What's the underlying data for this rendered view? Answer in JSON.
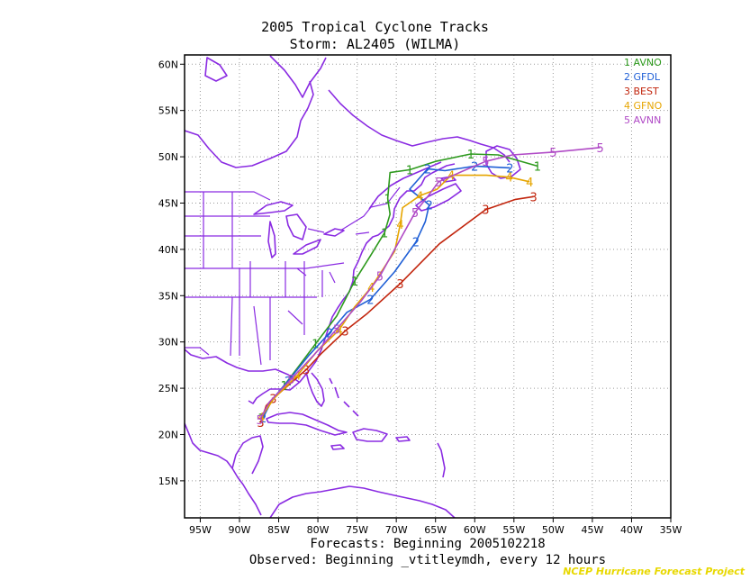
{
  "title_line1": "2005 Tropical Cyclone Tracks",
  "title_line2": "Storm: AL2405 (WILMA)",
  "footer_line1": "Forecasts: Beginning 2005102218",
  "footer_line2": "Observed: Beginning _vtitleymdh, every 12 hours",
  "credit": "NCEP Hurricane Forecast Project",
  "colors": {
    "coast": "#8a2be2",
    "grid": "#9a9a9a",
    "AVNO": "#2e9a1e",
    "GFDL": "#1f5fd6",
    "BEST": "#c2260e",
    "GFNO": "#e6a500",
    "AVNN": "#b04ac6"
  },
  "map": {
    "lon_range": [
      -97,
      -35
    ],
    "lat_range": [
      11,
      61
    ],
    "lon_ticks": [
      "95W",
      "90W",
      "85W",
      "80W",
      "75W",
      "70W",
      "65W",
      "60W",
      "55W",
      "50W",
      "45W",
      "40W",
      "35W"
    ],
    "lat_ticks": [
      "15N",
      "20N",
      "25N",
      "30N",
      "35N",
      "40N",
      "45N",
      "50N",
      "55N",
      "60N"
    ]
  },
  "legend": [
    {
      "num": "1",
      "name": "AVNO"
    },
    {
      "num": "2",
      "name": "GFDL"
    },
    {
      "num": "3",
      "name": "BEST"
    },
    {
      "num": "4",
      "name": "GFNO"
    },
    {
      "num": "5",
      "name": "AVNN"
    }
  ],
  "tracks": [
    {
      "num": "1",
      "name": "AVNO",
      "points": [
        [
          -87.2,
          21.8
        ],
        [
          -86.0,
          23.5
        ],
        [
          -84.3,
          25.3
        ],
        [
          -82.5,
          27.3
        ],
        [
          -80.3,
          29.8
        ],
        [
          -77.6,
          32.8
        ],
        [
          -75.3,
          36.6
        ],
        [
          -73.3,
          39.3
        ],
        [
          -71.5,
          41.8
        ],
        [
          -70.8,
          43.8
        ],
        [
          -71.1,
          45.5
        ],
        [
          -70.8,
          48.3
        ],
        [
          -68.3,
          48.6
        ],
        [
          -65.0,
          49.5
        ],
        [
          -60.5,
          50.3
        ],
        [
          -57.0,
          50.2
        ],
        [
          -52.0,
          49.0
        ]
      ]
    },
    {
      "num": "2",
      "name": "GFDL",
      "points": [
        [
          -87.0,
          21.8
        ],
        [
          -85.8,
          23.8
        ],
        [
          -83.8,
          25.8
        ],
        [
          -81.2,
          28.5
        ],
        [
          -78.5,
          31.0
        ],
        [
          -76.3,
          33.2
        ],
        [
          -73.3,
          34.6
        ],
        [
          -70.2,
          37.6
        ],
        [
          -67.5,
          40.8
        ],
        [
          -66.3,
          43.0
        ],
        [
          -65.8,
          44.8
        ],
        [
          -68.3,
          46.5
        ],
        [
          -66.0,
          48.7
        ],
        [
          -63.8,
          48.5
        ],
        [
          -60.0,
          49.0
        ],
        [
          -55.5,
          48.8
        ]
      ]
    },
    {
      "num": "3",
      "name": "BEST",
      "points": [
        [
          -87.3,
          21.3
        ],
        [
          -86.6,
          23.1
        ],
        [
          -85.7,
          23.9
        ],
        [
          -83.8,
          25.3
        ],
        [
          -81.5,
          27.0
        ],
        [
          -79.5,
          28.8
        ],
        [
          -76.5,
          31.2
        ],
        [
          -73.8,
          33.0
        ],
        [
          -69.5,
          36.3
        ],
        [
          -64.5,
          40.6
        ],
        [
          -58.6,
          44.3
        ],
        [
          -54.8,
          45.4
        ],
        [
          -52.5,
          45.7
        ]
      ]
    },
    {
      "num": "4",
      "name": "GFNO",
      "points": [
        [
          -87.2,
          21.9
        ],
        [
          -85.6,
          23.9
        ],
        [
          -82.6,
          26.4
        ],
        [
          -80.2,
          28.9
        ],
        [
          -77.3,
          31.3
        ],
        [
          -75.3,
          33.8
        ],
        [
          -73.2,
          35.9
        ],
        [
          -70.2,
          39.8
        ],
        [
          -69.5,
          42.7
        ],
        [
          -69.2,
          44.5
        ],
        [
          -67.0,
          45.8
        ],
        [
          -64.8,
          46.5
        ],
        [
          -63.0,
          48.0
        ],
        [
          -58.5,
          48.0
        ],
        [
          -55.6,
          47.8
        ],
        [
          -53.0,
          47.3
        ]
      ]
    },
    {
      "num": "5",
      "name": "AVNN",
      "points": [
        [
          -87.4,
          21.6
        ],
        [
          -86.2,
          23.5
        ],
        [
          -83.4,
          26.0
        ],
        [
          -80.6,
          28.5
        ],
        [
          -77.6,
          31.4
        ],
        [
          -74.6,
          34.3
        ],
        [
          -72.1,
          37.1
        ],
        [
          -69.3,
          41.4
        ],
        [
          -67.6,
          44.0
        ],
        [
          -66.0,
          45.7
        ],
        [
          -64.6,
          47.3
        ],
        [
          -61.4,
          48.5
        ],
        [
          -58.6,
          49.5
        ],
        [
          -55.2,
          50.2
        ],
        [
          -50.0,
          50.5
        ],
        [
          -44.0,
          51.0
        ]
      ]
    }
  ]
}
